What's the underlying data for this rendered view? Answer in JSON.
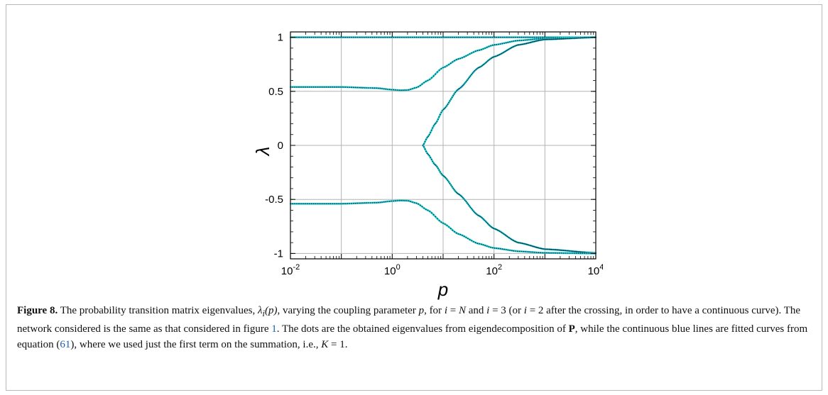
{
  "figure": {
    "caption": {
      "label": "Figure 8.",
      "t1": "The probability transition matrix eigenvalues, ",
      "lambda_sym": "λ",
      "lambda_sub": "i",
      "lambda_arg": "(p)",
      "t2": ", varying the coupling parameter ",
      "p_sym": "p",
      "t3": ", for ",
      "i_sym": "i",
      "eq_n": " = ",
      "N_sym": "N",
      "t4": " and ",
      "i_sym2": "i",
      "eq_3": " = 3 (or ",
      "i_sym3": "i",
      "eq_2": " = 2 after the crossing, in order to have a continuous curve). The network considered is the same as that considered in figure ",
      "fig_ref": "1",
      "t5": ". The dots are the obtained eigenvalues from eigendecomposition of ",
      "P_sym": "P",
      "t6": ", while the continuous blue lines are fitted curves from equation (",
      "eq_ref": "61",
      "t7": "), where we used just the first term on the summation, i.e., ",
      "K_sym": "K",
      "t8": " = 1."
    }
  },
  "chart_data": {
    "type": "line",
    "xlabel": "p",
    "ylabel": "λ",
    "xscale": "log",
    "xlim": [
      0.01,
      10000
    ],
    "ylim": [
      -1.05,
      1.05
    ],
    "xticks": [
      {
        "value": 0.01,
        "base": "10",
        "exp": "-2"
      },
      {
        "value": 1,
        "base": "10",
        "exp": "0"
      },
      {
        "value": 100,
        "base": "10",
        "exp": "2"
      },
      {
        "value": 10000,
        "base": "10",
        "exp": "4"
      }
    ],
    "yticks": [
      {
        "value": 1,
        "label": "1"
      },
      {
        "value": 0.5,
        "label": "0.5"
      },
      {
        "value": 0,
        "label": "0"
      },
      {
        "value": -0.5,
        "label": "-0.5"
      },
      {
        "value": -1,
        "label": "-1"
      }
    ],
    "grid": true,
    "colors": {
      "line": "#22d3d3",
      "dots": "#0b2a44",
      "grid": "#b3b3b3"
    },
    "series": [
      {
        "x": [
          0.01,
          0.1,
          1,
          10,
          100,
          1000,
          10000
        ],
        "y": [
          1,
          1,
          1,
          1,
          1,
          1,
          1
        ]
      },
      {
        "x": [
          0.01,
          0.1,
          0.5,
          1,
          1.5,
          2,
          3,
          5,
          10,
          20,
          50,
          100,
          300,
          1000,
          10000
        ],
        "y": [
          0.54,
          0.54,
          0.53,
          0.515,
          0.51,
          0.512,
          0.535,
          0.6,
          0.72,
          0.8,
          0.88,
          0.93,
          0.97,
          0.99,
          1.0
        ]
      },
      {
        "x": [
          4,
          5,
          7,
          10,
          20,
          50,
          100,
          300,
          1000,
          10000
        ],
        "y": [
          0.0,
          0.08,
          0.2,
          0.33,
          0.52,
          0.72,
          0.82,
          0.93,
          0.98,
          1.0
        ]
      },
      {
        "x": [
          4,
          5,
          7,
          10,
          20,
          50,
          100,
          300,
          1000,
          10000
        ],
        "y": [
          0.0,
          -0.08,
          -0.18,
          -0.28,
          -0.45,
          -0.65,
          -0.77,
          -0.9,
          -0.96,
          -0.995
        ]
      },
      {
        "x": [
          0.01,
          0.1,
          0.5,
          1,
          1.5,
          2,
          3,
          5,
          10,
          20,
          50,
          100,
          300,
          1000,
          10000
        ],
        "y": [
          -0.54,
          -0.54,
          -0.53,
          -0.515,
          -0.51,
          -0.512,
          -0.535,
          -0.6,
          -0.72,
          -0.82,
          -0.91,
          -0.95,
          -0.98,
          -0.995,
          -1.0
        ]
      }
    ]
  }
}
